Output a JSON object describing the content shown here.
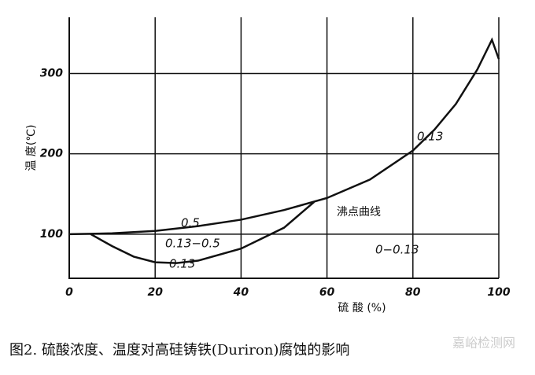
{
  "chart_data": {
    "type": "line",
    "title": "图2.   硫酸浓度、温度对高硅铸铁(Duriron)腐蚀的影响",
    "x_label": "硫 酸 (%)",
    "y_label": "温 度(℃)",
    "xlim": [
      0,
      100
    ],
    "ylim": [
      45,
      370
    ],
    "xticks": [
      0,
      20,
      40,
      60,
      80,
      100
    ],
    "yticks": [
      100,
      200,
      300
    ],
    "grid": true,
    "series": [
      {
        "name": "沸点曲线",
        "color": "#111111",
        "x": [
          0,
          10,
          20,
          30,
          40,
          50,
          60,
          70,
          80,
          85,
          90,
          95,
          98.4,
          100
        ],
        "values": [
          100,
          101,
          104,
          110,
          118,
          130,
          145,
          168,
          204,
          230,
          262,
          305,
          342,
          318
        ]
      },
      {
        "name": "0.13",
        "color": "#111111",
        "x": [
          5,
          10,
          15,
          20,
          25,
          30,
          40,
          50,
          57
        ],
        "values": [
          100,
          85,
          72,
          65,
          64,
          67,
          82,
          108,
          140
        ]
      }
    ],
    "annotations": [
      "0.5",
      "0.13−0.5",
      "0.13",
      "0.13",
      "沸点曲线",
      "0−0.13"
    ]
  },
  "watermark": "嘉峪检测网"
}
